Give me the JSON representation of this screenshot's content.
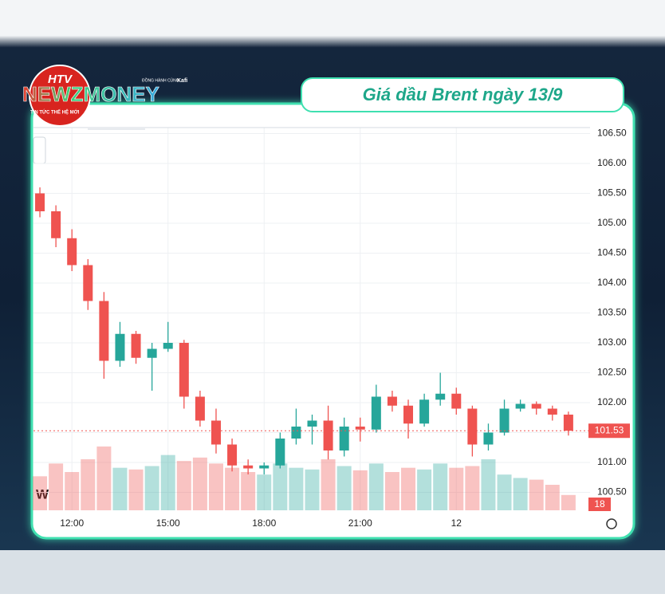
{
  "header": {
    "logo_badge": "HTV",
    "logo_main": "NEWZMONEY",
    "logo_tagline": "TIN TỨC THẾ HỆ MỚI",
    "sponsor": "ĐỒNG HÀNH CÙNG",
    "sponsor_name": "Kafi",
    "title": "Giá dầu Brent ngày 13/9"
  },
  "chart_data": {
    "type": "candlestick",
    "watermark": "W",
    "grid": true,
    "up_color": "#26a69a",
    "down_color": "#ef5350",
    "x": [
      11.0,
      11.5,
      12.0,
      12.5,
      13.0,
      13.5,
      14.0,
      14.5,
      15.0,
      15.5,
      16.0,
      16.5,
      17.0,
      17.5,
      18.0,
      18.5,
      19.0,
      19.5,
      20.0,
      20.5,
      21.0,
      21.5,
      22.0,
      22.5,
      23.0,
      23.5,
      24.0,
      24.5,
      25.0,
      25.5,
      26.0,
      26.5,
      27.0,
      27.5
    ],
    "open": [
      105.5,
      105.2,
      104.75,
      104.3,
      103.7,
      102.7,
      103.15,
      102.75,
      102.9,
      103.0,
      102.1,
      101.7,
      101.3,
      100.95,
      100.9,
      100.95,
      101.4,
      101.6,
      101.7,
      101.2,
      101.6,
      101.55,
      102.1,
      101.95,
      101.65,
      102.05,
      102.15,
      101.9,
      101.3,
      101.5,
      101.9,
      101.98,
      101.9,
      101.8
    ],
    "high": [
      105.6,
      105.3,
      104.9,
      104.4,
      103.85,
      103.35,
      103.2,
      103.0,
      103.35,
      103.05,
      102.2,
      101.9,
      101.4,
      101.05,
      101.0,
      101.5,
      101.9,
      101.8,
      101.95,
      101.75,
      101.75,
      102.3,
      102.2,
      102.05,
      102.15,
      102.5,
      102.25,
      101.95,
      101.65,
      102.05,
      102.05,
      102.02,
      101.95,
      101.85
    ],
    "low": [
      105.1,
      104.6,
      104.2,
      103.55,
      102.4,
      102.6,
      102.65,
      102.2,
      102.85,
      101.9,
      101.6,
      101.15,
      100.85,
      100.8,
      100.8,
      100.9,
      101.3,
      101.3,
      101.05,
      101.1,
      101.35,
      101.5,
      101.85,
      101.4,
      101.6,
      101.95,
      101.8,
      101.1,
      101.2,
      101.45,
      101.85,
      101.8,
      101.7,
      101.45
    ],
    "close": [
      105.2,
      104.75,
      104.3,
      103.7,
      102.7,
      103.15,
      102.75,
      102.9,
      103.0,
      102.1,
      101.7,
      101.3,
      100.95,
      100.9,
      100.95,
      101.4,
      101.6,
      101.7,
      101.2,
      101.6,
      101.55,
      102.1,
      101.95,
      101.65,
      102.05,
      102.15,
      101.9,
      101.3,
      101.5,
      101.9,
      101.98,
      101.9,
      101.8,
      101.53
    ],
    "volume": [
      40,
      55,
      45,
      60,
      75,
      50,
      48,
      52,
      65,
      58,
      62,
      55,
      50,
      45,
      42,
      55,
      50,
      48,
      60,
      52,
      47,
      55,
      45,
      50,
      48,
      55,
      50,
      52,
      60,
      42,
      38,
      36,
      30,
      18
    ],
    "xlim": [
      10.8,
      28.175
    ],
    "xticks": [
      {
        "value": 12,
        "label": "12:00"
      },
      {
        "value": 15,
        "label": "15:00"
      },
      {
        "value": 18,
        "label": "18:00"
      },
      {
        "value": 21,
        "label": "21:00"
      },
      {
        "value": 24,
        "label": "12"
      }
    ],
    "ylim": [
      100.2,
      106.6
    ],
    "yticks": [
      {
        "value": 100.5,
        "label": "100.50"
      },
      {
        "value": 101,
        "label": "101.00"
      },
      {
        "value": 101.5,
        "label": "101.50"
      },
      {
        "value": 102,
        "label": "102.00"
      },
      {
        "value": 102.5,
        "label": "102.50"
      },
      {
        "value": 103,
        "label": "103.00"
      },
      {
        "value": 103.5,
        "label": "103.50"
      },
      {
        "value": 104,
        "label": "104.00"
      },
      {
        "value": 104.5,
        "label": "104.50"
      },
      {
        "value": 105,
        "label": "105.00"
      },
      {
        "value": 105.5,
        "label": "105.50"
      },
      {
        "value": 106,
        "label": "106.00"
      },
      {
        "value": 106.5,
        "label": "106.50"
      }
    ]
  }
}
